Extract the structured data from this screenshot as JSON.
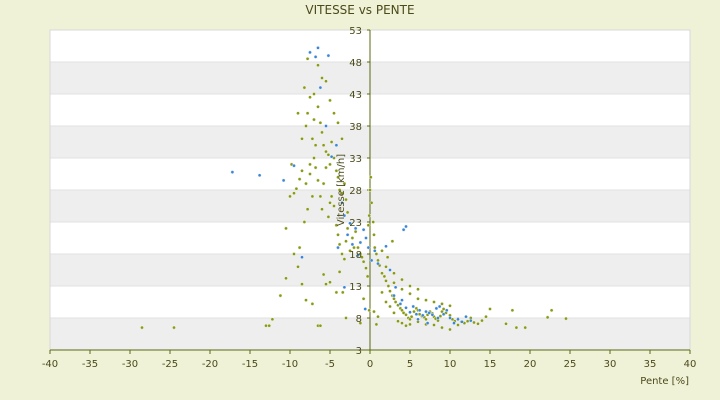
{
  "chart_data": {
    "type": "scatter",
    "title": "VITESSE vs PENTE",
    "xlabel": "Pente [%]",
    "ylabel": "Vitesse [km/h]",
    "xlim": [
      -40,
      40
    ],
    "ylim": [
      3,
      53
    ],
    "xticks": [
      -40,
      -35,
      -30,
      -25,
      -20,
      -15,
      -10,
      -5,
      0,
      5,
      10,
      15,
      20,
      25,
      30,
      35,
      40
    ],
    "yticks": [
      3,
      8,
      13,
      18,
      23,
      28,
      33,
      38,
      43,
      48,
      53
    ],
    "grid": "horizontal alternating bands",
    "legend": "none",
    "colors": {
      "series_a": "#8a9a14",
      "series_b": "#3a86d8",
      "axis": "#5a6a10",
      "band": "#eeeeee",
      "plot_bg": "#ffffff",
      "page_bg": "#f0f2d8"
    },
    "series": [
      {
        "color_key": "series_a",
        "points": [
          [
            -28.5,
            6.5
          ],
          [
            -24.5,
            6.5
          ],
          [
            -13,
            6.8
          ],
          [
            -12.6,
            6.8
          ],
          [
            -12.2,
            7.8
          ],
          [
            -11.2,
            11.5
          ],
          [
            -10.5,
            14.2
          ],
          [
            -8.5,
            13.3
          ],
          [
            -8,
            10.8
          ],
          [
            -7.2,
            10.2
          ],
          [
            -6.5,
            6.8
          ],
          [
            -6.2,
            6.8
          ],
          [
            -5.8,
            14.8
          ],
          [
            -5.5,
            13.3
          ],
          [
            -5,
            13.6
          ],
          [
            -4.2,
            12
          ],
          [
            -3.8,
            15.2
          ],
          [
            -3.4,
            12
          ],
          [
            -3,
            8
          ],
          [
            -9.5,
            27.5
          ],
          [
            -9.2,
            28.2
          ],
          [
            -8.8,
            29.7
          ],
          [
            -8.5,
            31
          ],
          [
            -8,
            29
          ],
          [
            -7.5,
            32
          ],
          [
            -7.5,
            30.5
          ],
          [
            -7,
            33
          ],
          [
            -6.8,
            31.5
          ],
          [
            -6.5,
            29.5
          ],
          [
            -6.2,
            27
          ],
          [
            -6,
            25
          ],
          [
            -5.8,
            29
          ],
          [
            -5.5,
            31.5
          ],
          [
            -5.2,
            23.8
          ],
          [
            -5,
            26
          ],
          [
            -4.8,
            27
          ],
          [
            -4.5,
            25.5
          ],
          [
            -4.2,
            22.5
          ],
          [
            -4,
            21
          ],
          [
            -3.8,
            19.5
          ],
          [
            -3.5,
            18
          ],
          [
            -3.2,
            17.2
          ],
          [
            -3,
            20
          ],
          [
            -2.8,
            22
          ],
          [
            -2.5,
            18.5
          ],
          [
            -2.2,
            20.5
          ],
          [
            -2,
            19
          ],
          [
            -1.8,
            21.5
          ],
          [
            -1.5,
            19
          ],
          [
            -1.2,
            18
          ],
          [
            -1,
            17.5
          ],
          [
            -0.8,
            16.8
          ],
          [
            -0.5,
            15.8
          ],
          [
            -0.3,
            14.5
          ],
          [
            -0.2,
            22.5
          ],
          [
            -0.1,
            24
          ],
          [
            0,
            28
          ],
          [
            0.1,
            30
          ],
          [
            0.2,
            26
          ],
          [
            0.4,
            23
          ],
          [
            0.5,
            21
          ],
          [
            0.6,
            19
          ],
          [
            0.8,
            18
          ],
          [
            -8.5,
            36
          ],
          [
            -8,
            38
          ],
          [
            -7.8,
            40
          ],
          [
            -7.2,
            36
          ],
          [
            -7,
            39
          ],
          [
            -6.8,
            35
          ],
          [
            -6.5,
            41
          ],
          [
            -6.2,
            38.5
          ],
          [
            -6,
            37
          ],
          [
            -5.8,
            35
          ],
          [
            -5.5,
            34
          ],
          [
            -5.2,
            33.5
          ],
          [
            -5,
            32
          ],
          [
            -4.8,
            35.5
          ],
          [
            -4.5,
            33
          ],
          [
            -4.2,
            31
          ],
          [
            -4,
            30
          ],
          [
            -3.8,
            28
          ],
          [
            -3.5,
            27.5
          ],
          [
            -3.2,
            29
          ],
          [
            -3,
            26.5
          ],
          [
            -2.8,
            24.5
          ],
          [
            -8.2,
            44
          ],
          [
            -7.5,
            42.5
          ],
          [
            -7,
            43
          ],
          [
            -6.5,
            47.5
          ],
          [
            -6,
            45.5
          ],
          [
            -5.5,
            45
          ],
          [
            -5,
            42
          ],
          [
            -4.5,
            40
          ],
          [
            -4,
            38.5
          ],
          [
            -3.5,
            36
          ],
          [
            -7.8,
            48.5
          ],
          [
            -9,
            40
          ],
          [
            -9.8,
            32
          ],
          [
            -10,
            27
          ],
          [
            -10.5,
            22
          ],
          [
            -9.5,
            18
          ],
          [
            -9,
            16
          ],
          [
            -8.8,
            19
          ],
          [
            -8.2,
            23
          ],
          [
            -7.8,
            25
          ],
          [
            -7.2,
            27
          ],
          [
            1,
            17
          ],
          [
            1.2,
            16.2
          ],
          [
            1.5,
            15
          ],
          [
            1.8,
            14.5
          ],
          [
            2,
            13.8
          ],
          [
            2.3,
            13
          ],
          [
            2.5,
            12.2
          ],
          [
            2.8,
            11.5
          ],
          [
            3,
            11
          ],
          [
            3.2,
            10.5
          ],
          [
            3.5,
            10
          ],
          [
            3.8,
            9.5
          ],
          [
            4,
            9.2
          ],
          [
            4.2,
            8.8
          ],
          [
            4.5,
            8.5
          ],
          [
            4.8,
            8
          ],
          [
            5,
            7.8
          ],
          [
            5.2,
            8.2
          ],
          [
            5.5,
            9
          ],
          [
            5.8,
            9.5
          ],
          [
            6,
            9.2
          ],
          [
            6.2,
            8.6
          ],
          [
            6.5,
            8.3
          ],
          [
            6.8,
            8.1
          ],
          [
            7,
            7.8
          ],
          [
            7.2,
            8.5
          ],
          [
            7.5,
            9
          ],
          [
            7.8,
            8.7
          ],
          [
            8,
            8.2
          ],
          [
            8.2,
            7.9
          ],
          [
            8.5,
            7.6
          ],
          [
            8.8,
            8.3
          ],
          [
            9,
            9
          ],
          [
            9.2,
            9.4
          ],
          [
            9.5,
            8.8
          ],
          [
            10,
            8.4
          ],
          [
            10.3,
            7.8
          ],
          [
            10.6,
            7.5
          ],
          [
            11,
            7.9
          ],
          [
            11.4,
            7.4
          ],
          [
            11.8,
            7.2
          ],
          [
            12.2,
            7.5
          ],
          [
            12.6,
            8
          ],
          [
            13,
            7.3
          ],
          [
            13.5,
            7.1
          ],
          [
            14,
            7.6
          ],
          [
            14.5,
            8.2
          ],
          [
            15,
            9.4
          ],
          [
            1.5,
            12
          ],
          [
            2,
            10.5
          ],
          [
            2.5,
            9.8
          ],
          [
            3,
            8.8
          ],
          [
            3.5,
            7.5
          ],
          [
            4,
            7.2
          ],
          [
            4.5,
            6.8
          ],
          [
            5,
            7
          ],
          [
            6,
            7.4
          ],
          [
            7,
            7
          ],
          [
            8,
            6.9
          ],
          [
            9,
            6.5
          ],
          [
            10,
            6.2
          ],
          [
            11,
            6.9
          ],
          [
            3,
            13.5
          ],
          [
            4,
            12.5
          ],
          [
            5,
            11.8
          ],
          [
            6,
            11
          ],
          [
            7,
            10.8
          ],
          [
            8,
            10.5
          ],
          [
            9,
            10.2
          ],
          [
            10,
            9.9
          ],
          [
            2,
            16
          ],
          [
            3,
            15
          ],
          [
            4,
            14
          ],
          [
            5,
            13
          ],
          [
            6,
            12.5
          ],
          [
            1.5,
            18.5
          ],
          [
            2.2,
            17.5
          ],
          [
            2.8,
            20
          ],
          [
            0.5,
            9
          ],
          [
            1,
            8.2
          ],
          [
            0.8,
            7
          ],
          [
            -0.1,
            9.2
          ],
          [
            -1.2,
            7.2
          ],
          [
            -0.8,
            11
          ],
          [
            17,
            7.1
          ],
          [
            17.8,
            9.2
          ],
          [
            18.3,
            6.5
          ],
          [
            19.4,
            6.5
          ],
          [
            22.2,
            8.1
          ],
          [
            22.7,
            9.2
          ],
          [
            24.5,
            7.9
          ]
        ]
      },
      {
        "color_key": "series_b",
        "points": [
          [
            -17.2,
            30.8
          ],
          [
            -13.8,
            30.3
          ],
          [
            -10.8,
            29.5
          ],
          [
            -9.5,
            31.8
          ],
          [
            -8.5,
            17.5
          ],
          [
            -7.5,
            49.5
          ],
          [
            -6.8,
            48.8
          ],
          [
            -6.5,
            50.2
          ],
          [
            -5.2,
            49
          ],
          [
            -6.2,
            44
          ],
          [
            -5.5,
            38
          ],
          [
            -4.8,
            33.2
          ],
          [
            -4.2,
            35
          ],
          [
            -3.5,
            26
          ],
          [
            -3.2,
            24
          ],
          [
            -2.8,
            21
          ],
          [
            -2.5,
            22.8
          ],
          [
            -2.2,
            19.5
          ],
          [
            -1.8,
            22
          ],
          [
            -1.5,
            17.8
          ],
          [
            -1.2,
            19.8
          ],
          [
            -0.8,
            21.8
          ],
          [
            -0.5,
            20.5
          ],
          [
            -0.2,
            19
          ],
          [
            0.2,
            17
          ],
          [
            0.6,
            18.5
          ],
          [
            1,
            16.5
          ],
          [
            -4,
            19
          ],
          [
            -3.2,
            12.8
          ],
          [
            -0.6,
            9.4
          ],
          [
            4.2,
            21.8
          ],
          [
            4.5,
            22.3
          ],
          [
            2,
            19.2
          ],
          [
            2.5,
            15.5
          ],
          [
            3.2,
            12.8
          ],
          [
            3.8,
            10.2
          ],
          [
            4.5,
            9.6
          ],
          [
            5,
            8.9
          ],
          [
            5.4,
            9.8
          ],
          [
            5.8,
            8.6
          ],
          [
            6.2,
            9.2
          ],
          [
            6.6,
            8.4
          ],
          [
            7,
            9
          ],
          [
            7.4,
            8.8
          ],
          [
            7.8,
            8.5
          ],
          [
            8.3,
            9.5
          ],
          [
            8.7,
            9.8
          ],
          [
            9.2,
            8.6
          ],
          [
            9.6,
            9.2
          ],
          [
            10,
            8
          ],
          [
            10.5,
            7.2
          ],
          [
            11,
            7.8
          ],
          [
            11.5,
            7.4
          ],
          [
            12,
            8.2
          ],
          [
            12.6,
            7.6
          ],
          [
            3,
            11.5
          ],
          [
            4,
            10.8
          ],
          [
            6,
            7.8
          ],
          [
            7.2,
            7.2
          ],
          [
            8.5,
            8
          ]
        ]
      }
    ]
  }
}
